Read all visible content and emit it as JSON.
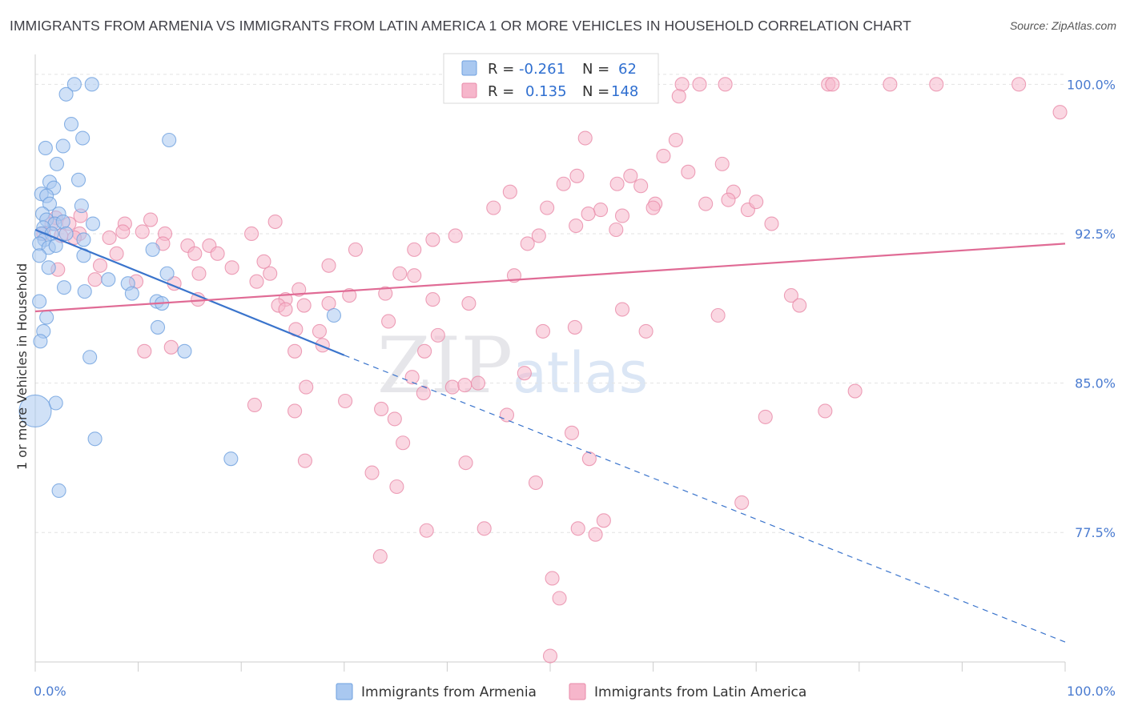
{
  "chart_data": {
    "type": "scatter",
    "title": "IMMIGRANTS FROM ARMENIA VS IMMIGRANTS FROM LATIN AMERICA 1 OR MORE VEHICLES IN HOUSEHOLD CORRELATION CHART",
    "source": "Source: ZipAtlas.com",
    "watermark": "ZIPatlas",
    "ylabel": "1 or more Vehicles in Household",
    "xlim": [
      0,
      100
    ],
    "ylim": [
      71,
      101.5
    ],
    "x_ticks": [
      "0.0%",
      "100.0%"
    ],
    "y_ticks": [
      {
        "value": 100.0,
        "label": "100.0%"
      },
      {
        "value": 92.5,
        "label": "92.5%"
      },
      {
        "value": 85.0,
        "label": "85.0%"
      },
      {
        "value": 77.5,
        "label": "77.5%"
      }
    ],
    "grid": true,
    "legend": {
      "placement": "top-center",
      "entries": [
        {
          "r_label": "R =",
          "r_value": "-0.261",
          "n_label": "N =",
          "n_value": "62",
          "color": "#a9c8f0"
        },
        {
          "r_label": "R =",
          "r_value": "0.135",
          "n_label": "N =",
          "n_value": "148",
          "color": "#f6b6cb"
        }
      ]
    },
    "series": [
      {
        "name": "Immigrants from Armenia",
        "color": "#6ea0df",
        "fill": "#a9c8f0",
        "trend": {
          "x0": 0,
          "y0": 92.7,
          "x1": 30,
          "y1": 86.4,
          "dashed_to_x": 100,
          "dashed_to_y": 72.0,
          "color": "#3a74cc"
        },
        "points": [
          [
            3.8,
            100.0
          ],
          [
            5.5,
            100.0
          ],
          [
            3.0,
            99.5
          ],
          [
            3.5,
            98.0
          ],
          [
            4.6,
            97.3
          ],
          [
            1.0,
            96.8
          ],
          [
            2.7,
            96.9
          ],
          [
            13.0,
            97.2
          ],
          [
            2.1,
            96.0
          ],
          [
            4.2,
            95.2
          ],
          [
            1.4,
            95.1
          ],
          [
            1.8,
            94.8
          ],
          [
            0.6,
            94.5
          ],
          [
            1.1,
            94.4
          ],
          [
            1.4,
            94.0
          ],
          [
            4.5,
            93.9
          ],
          [
            0.7,
            93.5
          ],
          [
            2.3,
            93.5
          ],
          [
            1.1,
            93.2
          ],
          [
            1.9,
            93.0
          ],
          [
            2.7,
            93.1
          ],
          [
            0.8,
            92.8
          ],
          [
            5.6,
            93.0
          ],
          [
            0.6,
            92.5
          ],
          [
            1.6,
            92.5
          ],
          [
            3.0,
            92.5
          ],
          [
            0.9,
            92.2
          ],
          [
            0.4,
            92.0
          ],
          [
            1.3,
            91.8
          ],
          [
            2.0,
            91.9
          ],
          [
            4.7,
            92.2
          ],
          [
            11.4,
            91.7
          ],
          [
            0.4,
            91.4
          ],
          [
            4.7,
            91.4
          ],
          [
            1.3,
            90.8
          ],
          [
            12.8,
            90.5
          ],
          [
            7.1,
            90.2
          ],
          [
            9.0,
            90.0
          ],
          [
            2.8,
            89.8
          ],
          [
            4.8,
            89.6
          ],
          [
            9.4,
            89.5
          ],
          [
            0.4,
            89.1
          ],
          [
            11.8,
            89.1
          ],
          [
            12.3,
            89.0
          ],
          [
            1.1,
            88.3
          ],
          [
            29.0,
            88.4
          ],
          [
            11.9,
            87.8
          ],
          [
            0.8,
            87.6
          ],
          [
            0.5,
            87.1
          ],
          [
            5.3,
            86.3
          ],
          [
            14.5,
            86.6
          ],
          [
            2.0,
            84.0
          ],
          [
            0.0,
            83.6
          ],
          [
            5.8,
            82.2
          ],
          [
            19.0,
            81.2
          ],
          [
            2.3,
            79.6
          ]
        ]
      },
      {
        "name": "Immigrants from Latin America",
        "color": "#e88aa8",
        "fill": "#f6b6cb",
        "trend": {
          "x0": 0,
          "y0": 88.6,
          "x1": 100,
          "y1": 92.0,
          "color": "#e06b95"
        },
        "points": [
          [
            62.8,
            100.0
          ],
          [
            64.5,
            100.0
          ],
          [
            67.0,
            100.0
          ],
          [
            77.0,
            100.0
          ],
          [
            77.4,
            100.0
          ],
          [
            83.0,
            100.0
          ],
          [
            87.5,
            100.0
          ],
          [
            95.5,
            100.0
          ],
          [
            62.5,
            99.4
          ],
          [
            99.5,
            98.6
          ],
          [
            53.4,
            97.3
          ],
          [
            62.2,
            97.2
          ],
          [
            61.0,
            96.4
          ],
          [
            66.7,
            96.0
          ],
          [
            63.4,
            95.6
          ],
          [
            57.8,
            95.4
          ],
          [
            52.6,
            95.4
          ],
          [
            56.5,
            95.0
          ],
          [
            51.3,
            95.0
          ],
          [
            58.8,
            94.9
          ],
          [
            46.1,
            94.6
          ],
          [
            67.8,
            94.6
          ],
          [
            67.3,
            94.2
          ],
          [
            60.2,
            94.0
          ],
          [
            60.0,
            93.8
          ],
          [
            65.1,
            94.0
          ],
          [
            44.5,
            93.8
          ],
          [
            49.7,
            93.8
          ],
          [
            69.2,
            93.7
          ],
          [
            54.9,
            93.7
          ],
          [
            53.7,
            93.5
          ],
          [
            57.0,
            93.4
          ],
          [
            70.0,
            94.1
          ],
          [
            4.4,
            93.4
          ],
          [
            11.2,
            93.2
          ],
          [
            23.3,
            93.1
          ],
          [
            2.0,
            93.3
          ],
          [
            1.6,
            93.0
          ],
          [
            3.3,
            93.0
          ],
          [
            8.7,
            93.0
          ],
          [
            8.5,
            92.6
          ],
          [
            10.4,
            92.6
          ],
          [
            12.6,
            92.5
          ],
          [
            21.0,
            92.5
          ],
          [
            40.8,
            92.4
          ],
          [
            48.9,
            92.4
          ],
          [
            71.5,
            93.0
          ],
          [
            52.5,
            92.9
          ],
          [
            56.4,
            92.7
          ],
          [
            4.3,
            92.5
          ],
          [
            0.8,
            92.5
          ],
          [
            2.5,
            92.4
          ],
          [
            3.8,
            92.3
          ],
          [
            7.2,
            92.3
          ],
          [
            12.4,
            92.0
          ],
          [
            14.8,
            91.9
          ],
          [
            16.9,
            91.9
          ],
          [
            38.6,
            92.2
          ],
          [
            47.8,
            92.0
          ],
          [
            31.1,
            91.7
          ],
          [
            36.8,
            91.7
          ],
          [
            7.9,
            91.5
          ],
          [
            15.5,
            91.5
          ],
          [
            17.7,
            91.5
          ],
          [
            22.2,
            91.1
          ],
          [
            28.5,
            90.9
          ],
          [
            19.1,
            90.8
          ],
          [
            6.3,
            90.9
          ],
          [
            22.8,
            90.5
          ],
          [
            15.9,
            90.5
          ],
          [
            35.4,
            90.5
          ],
          [
            36.8,
            90.4
          ],
          [
            46.5,
            90.4
          ],
          [
            2.2,
            90.7
          ],
          [
            5.8,
            90.2
          ],
          [
            13.5,
            90.0
          ],
          [
            9.8,
            90.1
          ],
          [
            21.5,
            90.1
          ],
          [
            25.6,
            89.7
          ],
          [
            34.0,
            89.5
          ],
          [
            30.5,
            89.4
          ],
          [
            73.4,
            89.4
          ],
          [
            15.8,
            89.2
          ],
          [
            24.3,
            89.2
          ],
          [
            38.6,
            89.2
          ],
          [
            28.5,
            89.0
          ],
          [
            26.1,
            88.9
          ],
          [
            23.6,
            88.9
          ],
          [
            42.1,
            89.0
          ],
          [
            24.3,
            88.7
          ],
          [
            57.0,
            88.7
          ],
          [
            34.3,
            88.1
          ],
          [
            66.3,
            88.4
          ],
          [
            49.3,
            87.6
          ],
          [
            25.3,
            87.7
          ],
          [
            27.6,
            87.6
          ],
          [
            39.1,
            87.4
          ],
          [
            27.9,
            86.9
          ],
          [
            52.4,
            87.8
          ],
          [
            59.3,
            87.6
          ],
          [
            74.2,
            88.9
          ],
          [
            37.8,
            86.6
          ],
          [
            13.2,
            86.8
          ],
          [
            10.6,
            86.6
          ],
          [
            25.2,
            86.6
          ],
          [
            47.5,
            85.5
          ],
          [
            36.6,
            85.3
          ],
          [
            26.3,
            84.8
          ],
          [
            40.5,
            84.8
          ],
          [
            41.7,
            84.9
          ],
          [
            43.0,
            85.0
          ],
          [
            79.6,
            84.6
          ],
          [
            37.7,
            84.5
          ],
          [
            30.1,
            84.1
          ],
          [
            21.3,
            83.9
          ],
          [
            33.6,
            83.7
          ],
          [
            70.9,
            83.3
          ],
          [
            76.7,
            83.6
          ],
          [
            45.8,
            83.4
          ],
          [
            34.9,
            83.2
          ],
          [
            25.2,
            83.6
          ],
          [
            52.1,
            82.5
          ],
          [
            35.7,
            82.0
          ],
          [
            26.2,
            81.1
          ],
          [
            53.8,
            81.2
          ],
          [
            41.8,
            81.0
          ],
          [
            32.7,
            80.5
          ],
          [
            35.1,
            79.8
          ],
          [
            48.6,
            80.0
          ],
          [
            68.6,
            79.0
          ],
          [
            55.2,
            78.1
          ],
          [
            43.6,
            77.7
          ],
          [
            38.0,
            77.6
          ],
          [
            54.4,
            77.4
          ],
          [
            52.7,
            77.7
          ],
          [
            33.5,
            76.3
          ],
          [
            50.2,
            75.2
          ],
          [
            50.9,
            74.2
          ],
          [
            50.0,
            71.3
          ]
        ]
      }
    ]
  }
}
